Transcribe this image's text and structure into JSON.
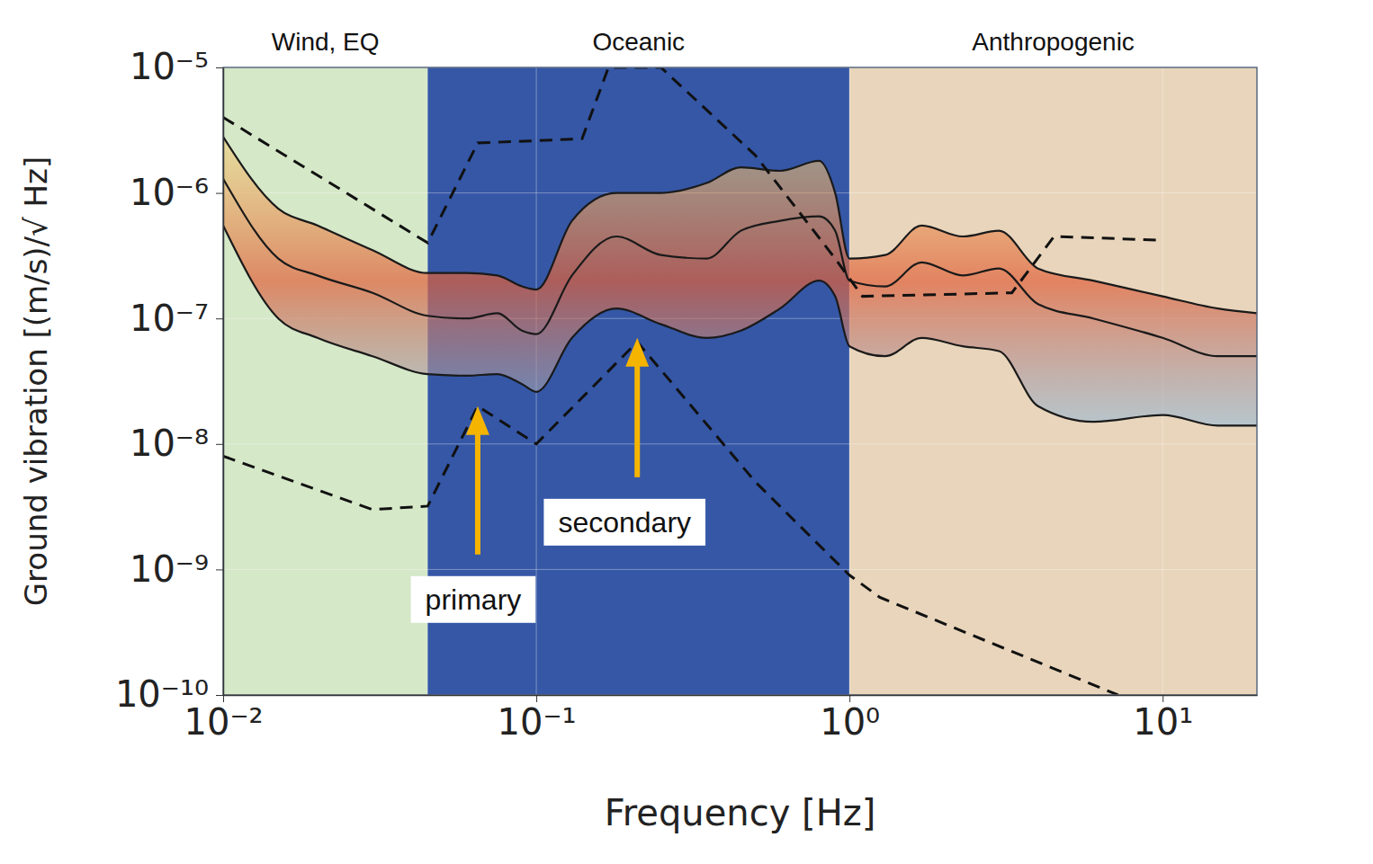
{
  "chart_data": {
    "type": "line",
    "x_label": "Frequency [Hz]",
    "y_label": "Ground vibration [(m/s)/√ Hz]",
    "log": true,
    "grid": true,
    "xlim": [
      0.01,
      20
    ],
    "ylim": [
      1e-10,
      1e-05
    ],
    "xticks": [
      {
        "value": 0.01,
        "label": "10⁻²"
      },
      {
        "value": 0.1,
        "label": "10⁻¹"
      },
      {
        "value": 1,
        "label": "10⁰"
      },
      {
        "value": 10,
        "label": "10¹"
      }
    ],
    "yticks": [
      {
        "value": 1e-10,
        "label": "10⁻¹⁰"
      },
      {
        "value": 1e-09,
        "label": "10⁻⁹"
      },
      {
        "value": 1e-08,
        "label": "10⁻⁸"
      },
      {
        "value": 1e-07,
        "label": "10⁻⁷"
      },
      {
        "value": 1e-06,
        "label": "10⁻⁶"
      },
      {
        "value": 1e-05,
        "label": "10⁻⁵"
      }
    ],
    "regions": [
      {
        "label": "Wind, EQ",
        "x": [
          0.01,
          0.045
        ],
        "color": "#d5e8c8"
      },
      {
        "label": "Oceanic",
        "x": [
          0.045,
          1
        ],
        "color": "#3557a6"
      },
      {
        "label": "Anthropogenic",
        "x": [
          1,
          20
        ],
        "color": "#e8d5bb"
      }
    ],
    "series": [
      {
        "color": "#1a1a1a",
        "line_style": "solid",
        "x": [
          0.01,
          0.015,
          0.02,
          0.03,
          0.045,
          0.06,
          0.075,
          0.09,
          0.1,
          0.13,
          0.18,
          0.25,
          0.35,
          0.45,
          0.6,
          0.8,
          0.9,
          1,
          1.3,
          1.7,
          2.3,
          3,
          4,
          6,
          10,
          15,
          20
        ],
        "values": [
          2.8e-06,
          7.5e-07,
          5.5e-07,
          3.5e-07,
          2.3e-07,
          2.3e-07,
          2.2e-07,
          1.8e-07,
          1.7e-07,
          6e-07,
          1e-06,
          1e-06,
          1.2e-06,
          1.6e-06,
          1.5e-06,
          1.8e-06,
          1e-06,
          3e-07,
          3.2e-07,
          5.5e-07,
          4.5e-07,
          5e-07,
          2.5e-07,
          2e-07,
          1.5e-07,
          1.2e-07,
          1.1e-07
        ]
      },
      {
        "color": "#1a1a1a",
        "line_style": "solid",
        "x": [
          0.01,
          0.015,
          0.02,
          0.03,
          0.045,
          0.06,
          0.075,
          0.09,
          0.1,
          0.13,
          0.18,
          0.25,
          0.35,
          0.45,
          0.6,
          0.8,
          0.9,
          1,
          1.3,
          1.7,
          2.3,
          3,
          4,
          6,
          10,
          15,
          20
        ],
        "values": [
          1.3e-06,
          3e-07,
          2.2e-07,
          1.6e-07,
          1.05e-07,
          1e-07,
          1.1e-07,
          8e-08,
          7.5e-08,
          2.2e-07,
          4.5e-07,
          3.2e-07,
          3e-07,
          5e-07,
          6e-07,
          6.5e-07,
          5e-07,
          2e-07,
          1.8e-07,
          2.8e-07,
          2.2e-07,
          2.5e-07,
          1.3e-07,
          1e-07,
          7e-08,
          5e-08,
          5e-08
        ]
      },
      {
        "color": "#1a1a1a",
        "line_style": "solid",
        "x": [
          0.01,
          0.015,
          0.02,
          0.03,
          0.045,
          0.06,
          0.075,
          0.09,
          0.1,
          0.13,
          0.18,
          0.25,
          0.35,
          0.45,
          0.6,
          0.8,
          0.9,
          1,
          1.3,
          1.7,
          2.3,
          3,
          4,
          6,
          10,
          15,
          20
        ],
        "values": [
          5.5e-07,
          1e-07,
          7e-08,
          5e-08,
          3.6e-08,
          3.5e-08,
          3.6e-08,
          3e-08,
          2.6e-08,
          7e-08,
          1.2e-07,
          9e-08,
          7e-08,
          8e-08,
          1.2e-07,
          2e-07,
          1.5e-07,
          6e-08,
          5e-08,
          7e-08,
          6e-08,
          5.5e-08,
          2e-08,
          1.5e-08,
          1.7e-08,
          1.4e-08,
          1.4e-08
        ]
      },
      {
        "color": "#111111",
        "line_style": "dashed",
        "x": [
          0.01,
          0.045,
          0.065,
          0.14,
          0.17,
          0.25,
          0.5,
          0.9,
          1.1,
          3.3,
          4.5,
          10
        ],
        "values": [
          4e-06,
          4e-07,
          2.5e-06,
          2.7e-06,
          1e-05,
          1e-05,
          2e-06,
          3e-07,
          1.5e-07,
          1.6e-07,
          4.5e-07,
          4.2e-07
        ]
      },
      {
        "color": "#111111",
        "line_style": "dashed",
        "x": [
          0.01,
          0.03,
          0.045,
          0.065,
          0.1,
          0.21,
          0.5,
          1,
          1.25,
          7.2
        ],
        "values": [
          8e-09,
          3e-09,
          3.2e-09,
          2e-08,
          1e-08,
          6.5e-08,
          5e-09,
          9e-10,
          6e-10,
          1e-10
        ]
      }
    ],
    "annotations": [
      {
        "text": "primary",
        "x": 0.065,
        "y": 2e-08,
        "color": "#f5b400"
      },
      {
        "text": "secondary",
        "x": 0.21,
        "y": 7e-08,
        "color": "#f5b400"
      }
    ]
  }
}
